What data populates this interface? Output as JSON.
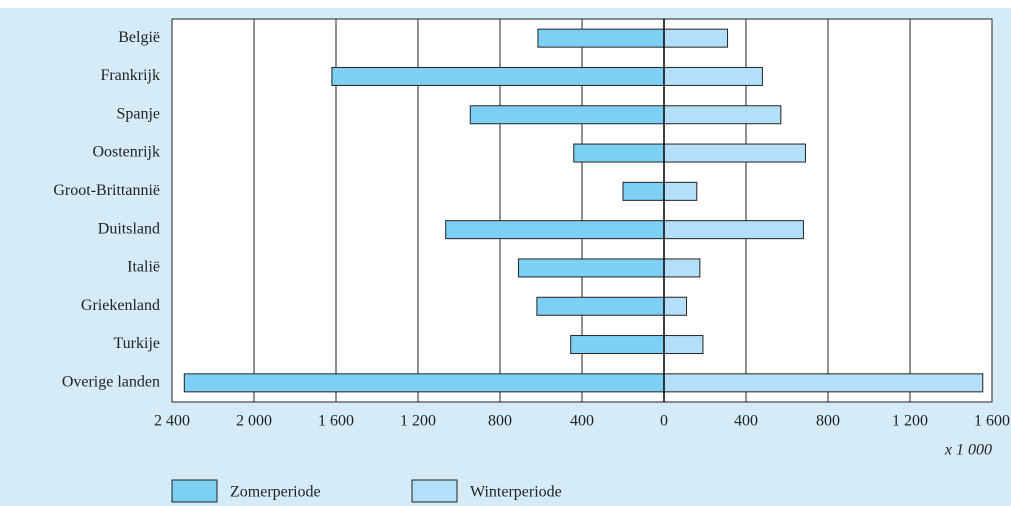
{
  "chart_data": {
    "type": "butterfly-bar",
    "categories": [
      "België",
      "Frankrijk",
      "Spanje",
      "Oostenrijk",
      "Groot-Brittannië",
      "Duitsland",
      "Italië",
      "Griekenland",
      "Turkije",
      "Overige landen"
    ],
    "series": [
      {
        "name": "Zomerperiode",
        "color": "#7dcff4",
        "side": "left",
        "values": [
          615,
          1620,
          945,
          440,
          200,
          1065,
          710,
          620,
          455,
          2340
        ]
      },
      {
        "name": "Winterperiode",
        "color": "#b3e0f8",
        "side": "right",
        "values": [
          310,
          480,
          570,
          690,
          160,
          680,
          175,
          110,
          190,
          1555
        ]
      }
    ],
    "xlim_left": [
      2400,
      0
    ],
    "xticks_left": [
      {
        "value": 2400,
        "label": "2 400"
      },
      {
        "value": 2000,
        "label": "2 000"
      },
      {
        "value": 1600,
        "label": "1 600"
      },
      {
        "value": 1200,
        "label": "1 200"
      },
      800,
      400
    ],
    "xlim_right": [
      0,
      1600
    ],
    "xticks_right": [
      0,
      400,
      800,
      {
        "value": 1200,
        "label": "1 200"
      },
      {
        "value": 1600,
        "label": "1 600"
      }
    ],
    "unit_label": "x 1 000",
    "grid": true
  }
}
